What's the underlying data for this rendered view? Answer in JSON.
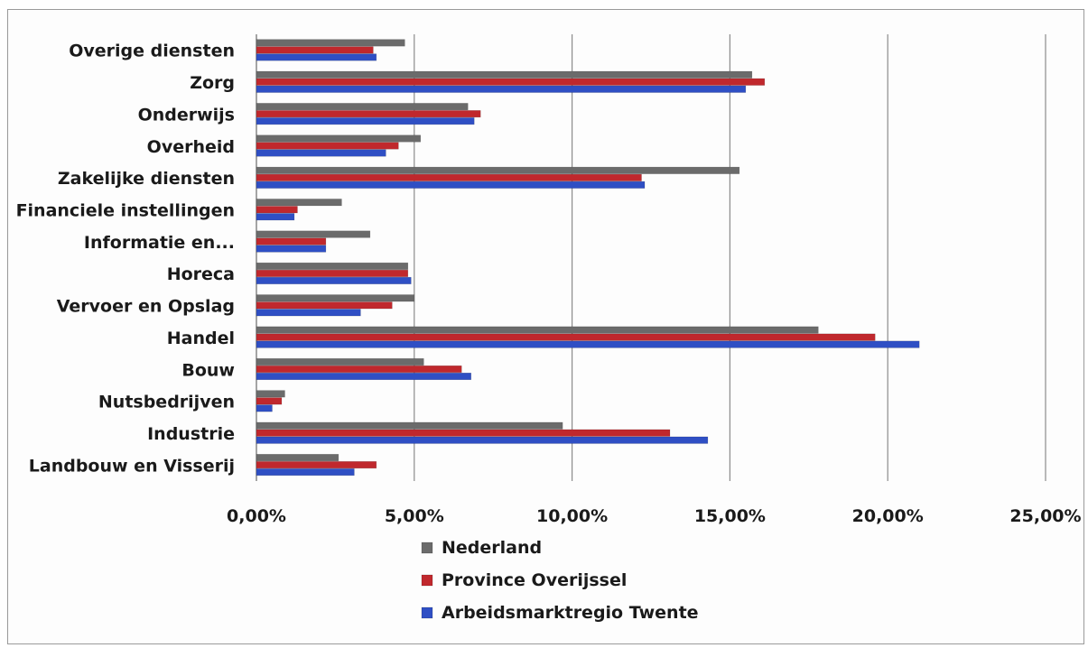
{
  "chart_data": {
    "type": "bar",
    "orientation": "horizontal",
    "categories": [
      "Overige diensten",
      "Zorg",
      "Onderwijs",
      "Overheid",
      "Zakelijke diensten",
      "Financiele instellingen",
      "Informatie en...",
      "Horeca",
      "Vervoer en Opslag",
      "Handel",
      "Bouw",
      "Nutsbedrijven",
      "Industrie",
      "Landbouw en Visserij"
    ],
    "series": [
      {
        "name": "Nederland",
        "color": "#6b6b6b",
        "values": [
          4.7,
          15.7,
          6.7,
          5.2,
          15.3,
          2.7,
          3.6,
          4.8,
          5.0,
          17.8,
          5.3,
          0.9,
          9.7,
          2.6
        ]
      },
      {
        "name": "Province Overijssel",
        "color": "#c0282d",
        "values": [
          3.7,
          16.1,
          7.1,
          4.5,
          12.2,
          1.3,
          2.2,
          4.8,
          4.3,
          19.6,
          6.5,
          0.8,
          13.1,
          3.8
        ]
      },
      {
        "name": "Arbeidsmarktregio Twente",
        "color": "#2f4fc4",
        "values": [
          3.8,
          15.5,
          6.9,
          4.1,
          12.3,
          1.2,
          2.2,
          4.9,
          3.3,
          21.0,
          6.8,
          0.5,
          14.3,
          3.1
        ]
      }
    ],
    "x_ticks": [
      "0,00%",
      "5,00%",
      "10,00%",
      "15,00%",
      "20,00%",
      "25,00%"
    ],
    "xlim": [
      0,
      25
    ],
    "grid": "vertical",
    "legend_position": "bottom",
    "title": "",
    "xlabel": "",
    "ylabel": ""
  }
}
